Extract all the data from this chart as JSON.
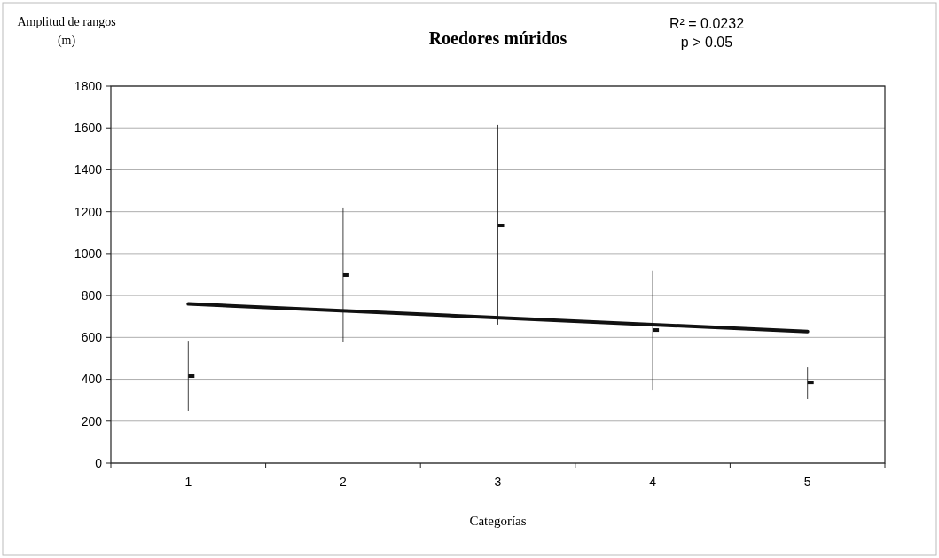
{
  "chart_data": {
    "type": "scatter",
    "title": "Roedores múridos",
    "xlabel": "Categorías",
    "ylabel": "Amplitud de rangos (m)",
    "annotations": [
      "R² = 0.0232",
      "p > 0.05"
    ],
    "categories": [
      "1",
      "2",
      "3",
      "4",
      "5"
    ],
    "ylim": [
      0,
      1800
    ],
    "yticks": [
      0,
      200,
      400,
      600,
      800,
      1000,
      1200,
      1400,
      1600,
      1800
    ],
    "grid": "y",
    "series": [
      {
        "color": "#111111",
        "marker": "square",
        "values": [
          415,
          898,
          1135,
          635,
          385
        ],
        "errors": [
          [
            250,
            584
          ],
          [
            580,
            1220
          ],
          [
            661,
            1614
          ],
          [
            347,
            920
          ],
          [
            305,
            457
          ]
        ]
      },
      {
        "type": "line",
        "color": "#111111",
        "x": [
          "1",
          "5"
        ],
        "values": [
          760,
          628
        ],
        "line_style": "solid",
        "marker": "none"
      }
    ]
  }
}
